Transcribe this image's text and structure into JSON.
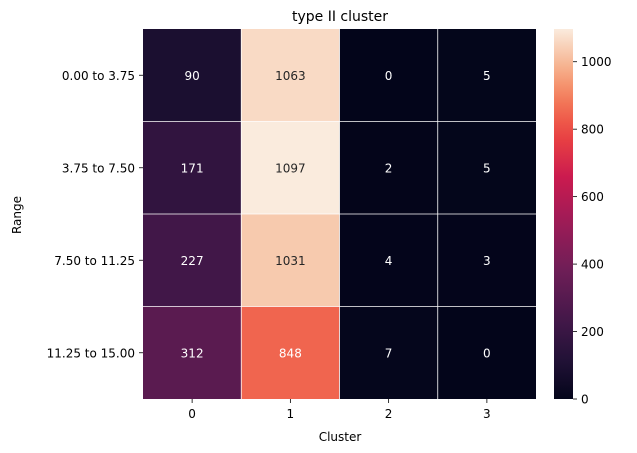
{
  "chart_data": {
    "type": "heatmap",
    "title": "type II cluster",
    "xlabel": "Cluster",
    "ylabel": "Range",
    "x_categories": [
      "0",
      "1",
      "2",
      "3"
    ],
    "y_categories": [
      "0.00 to 3.75",
      "3.75 to 7.50",
      "7.50 to 11.25",
      "11.25 to 15.00"
    ],
    "values": [
      [
        90,
        1063,
        0,
        5
      ],
      [
        171,
        1097,
        2,
        5
      ],
      [
        227,
        1031,
        4,
        3
      ],
      [
        312,
        848,
        7,
        0
      ]
    ],
    "color_range": [
      0,
      1097
    ],
    "colormap": "rocket",
    "colorbar_ticks": [
      0,
      200,
      400,
      600,
      800,
      1000
    ],
    "annotation_colors": {
      "dark_cell": "#ffffff",
      "light_cell": "#262626"
    },
    "gridline_color": "#ffffff"
  }
}
